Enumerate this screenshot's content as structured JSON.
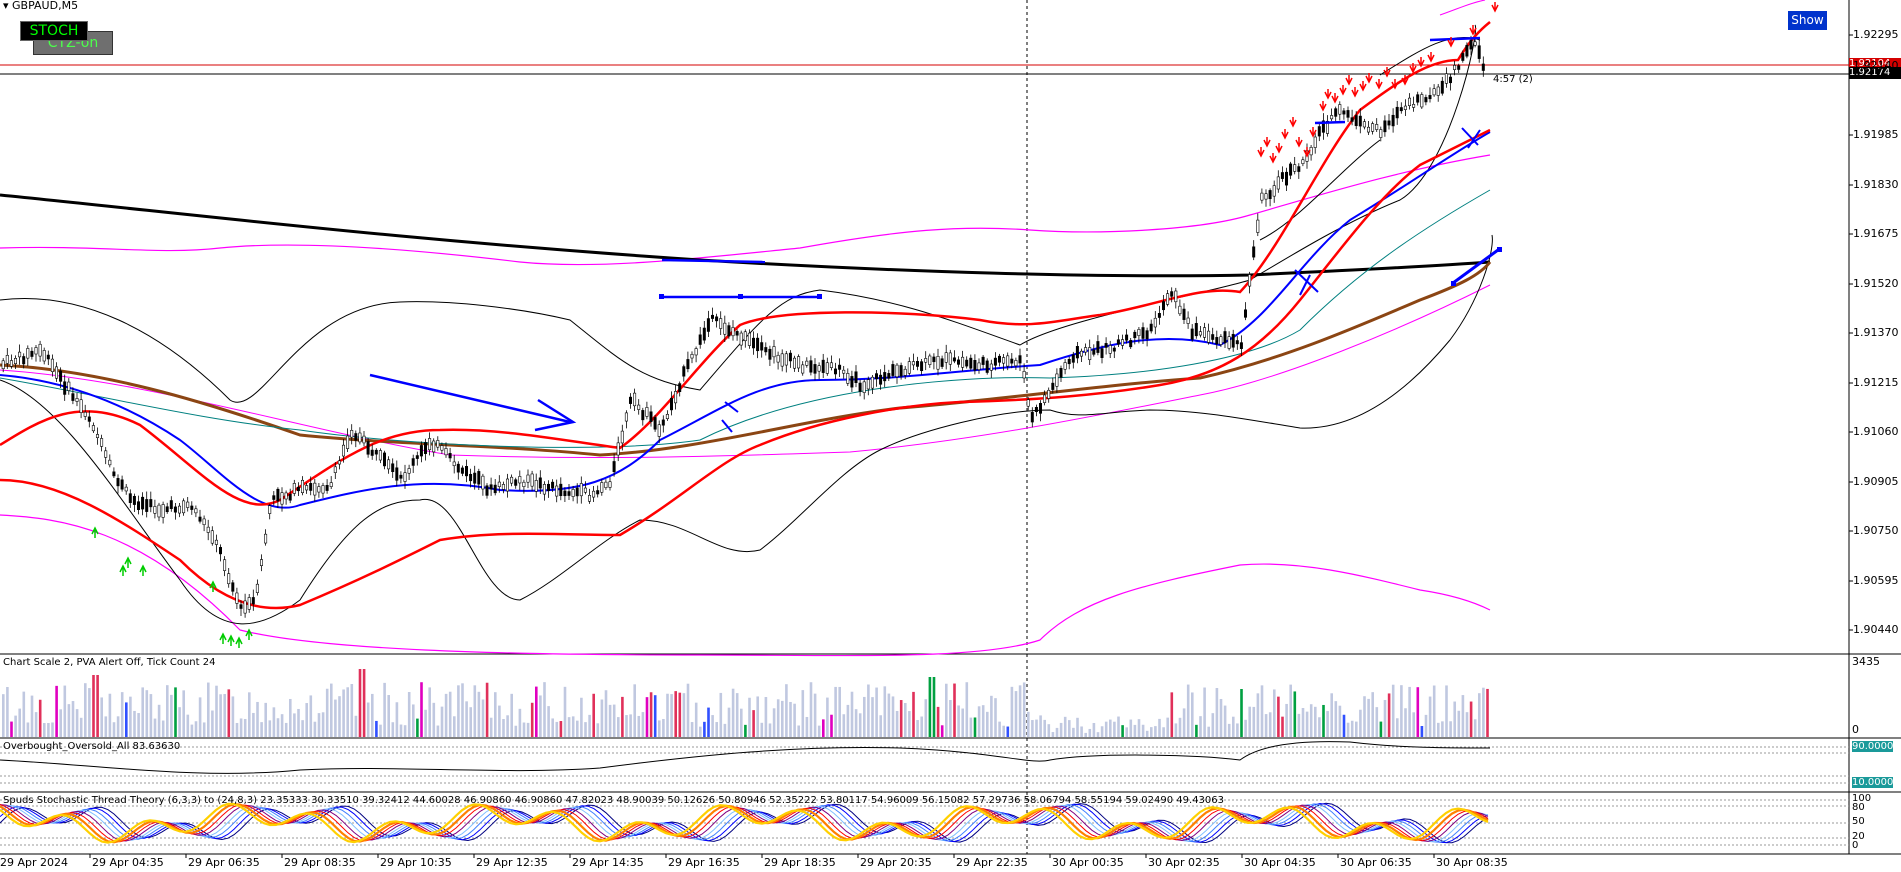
{
  "symbol_title": "GBPAUD,M5",
  "buttons": {
    "stoch": "STOCH",
    "ctz": "CTZ-on",
    "show": "Show"
  },
  "price_axis": [
    "1.92295",
    "1.92140",
    "1.91985",
    "1.91830",
    "1.91675",
    "1.91520",
    "1.91370",
    "1.91215",
    "1.91060",
    "1.90905",
    "1.90750",
    "1.90595",
    "1.90440"
  ],
  "price_tags": {
    "red": "1.92104",
    "black": "1.92174"
  },
  "countdown": "4:57 (2)",
  "volume_panel": {
    "label": "Chart Scale  2,  PVA Alert Off,  Tick Count  24",
    "axis_top": "3435",
    "axis_bottom": "0"
  },
  "ob_os_panel": {
    "label": "Overbought_Oversold_All 83.63630",
    "level_high": "90.0000",
    "level_low": "10.0000"
  },
  "stoch_panel": {
    "label": "Spuds Stochastic Thread Theory (6,3,3) to (24,8,3) 23.35333 30.33510 39.32412 44.60028 46.90860 46.90860 47.82023 48.90039 50.12626 50.80946 52.35222 53.80117 54.96009 56.15082 57.29736 58.06794 58.55194 59.02490 49.43063",
    "axis": [
      "100",
      "80",
      "50",
      "20",
      "0"
    ]
  },
  "time_axis": [
    "29 Apr 2024",
    "29 Apr 04:35",
    "29 Apr 06:35",
    "29 Apr 08:35",
    "29 Apr 10:35",
    "29 Apr 12:35",
    "29 Apr 14:35",
    "29 Apr 16:35",
    "29 Apr 18:35",
    "29 Apr 20:35",
    "29 Apr 22:35",
    "30 Apr 00:35",
    "30 Apr 02:35",
    "30 Apr 04:35",
    "30 Apr 06:35",
    "30 Apr 08:35"
  ],
  "colors": {
    "bull_candle": "#000000",
    "ma_red": "#ff0000",
    "ma_blue": "#0000ff",
    "ma_brown": "#8b4513",
    "ma_black": "#000000",
    "band_magenta": "#ff00ff",
    "volume_gray": "#c0c8e0",
    "volume_red": "#e0305a",
    "volume_green": "#00a040",
    "volume_blue": "#3050ff",
    "volume_magenta": "#e000c0"
  }
}
